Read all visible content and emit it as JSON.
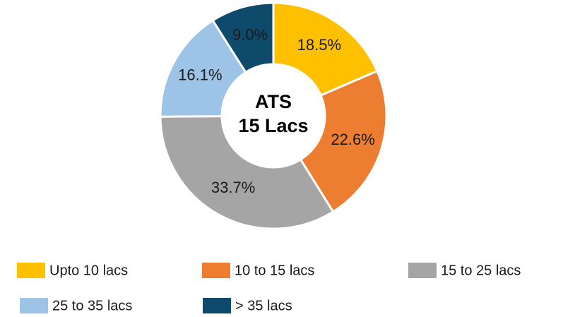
{
  "chart_data": {
    "type": "donut",
    "center_label": [
      "ATS",
      "15 Lacs"
    ],
    "categories": [
      "Upto 10 lacs",
      "10 to 15 lacs",
      "15 to 25 lacs",
      "25 to 35 lacs",
      "> 35 lacs"
    ],
    "values": [
      18.5,
      22.6,
      33.7,
      16.1,
      9.0
    ],
    "value_labels": [
      "18.5%",
      "22.6%",
      "33.7%",
      "16.1%",
      "9.0%"
    ],
    "colors": [
      "#FFC000",
      "#ED7D31",
      "#A5A5A5",
      "#9DC3E6",
      "#0E4A6B"
    ],
    "label_colors": [
      "#1a1a1a",
      "#1a1a1a",
      "#1a1a1a",
      "#1a1a1a",
      "#ffffff"
    ]
  }
}
